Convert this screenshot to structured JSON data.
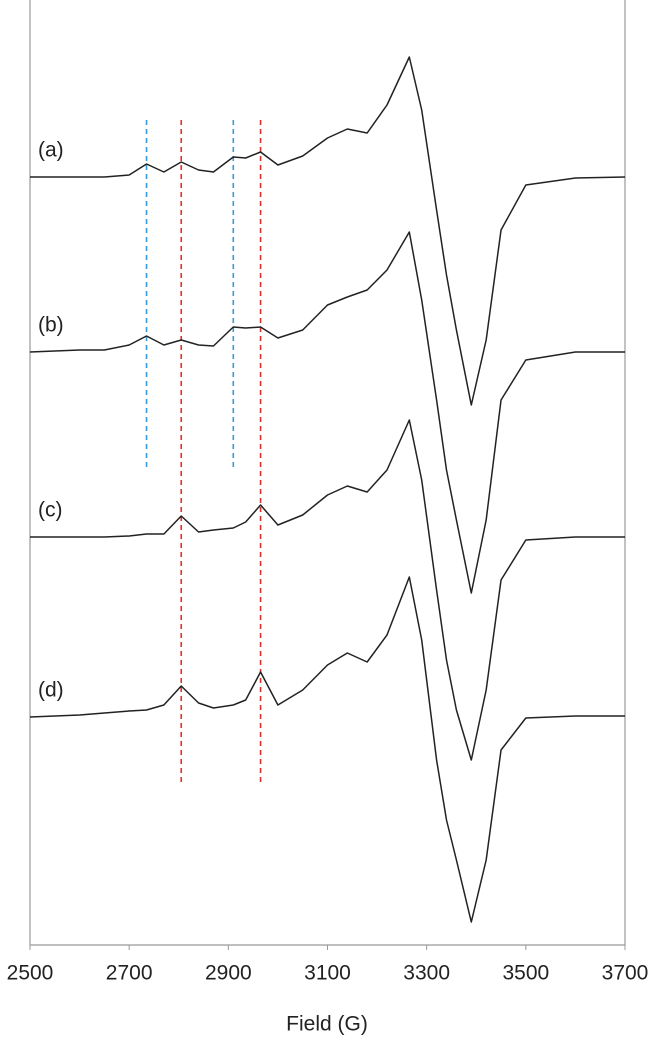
{
  "chart_data": {
    "type": "line",
    "xlabel": "Field (G)",
    "x": [
      2500,
      2600,
      2650,
      2700,
      2735,
      2770,
      2805,
      2840,
      2870,
      2910,
      2935,
      2965,
      3000,
      3050,
      3100,
      3140,
      3180,
      3220,
      3265,
      3290,
      3320,
      3340,
      3360,
      3390,
      3420,
      3450,
      3500,
      3600,
      3700
    ],
    "xlim": [
      2500,
      3700
    ],
    "xticks": [
      2500,
      2700,
      2900,
      3100,
      3300,
      3500,
      3700
    ],
    "ylim": [
      0,
      945
    ],
    "series": [
      {
        "name": "(a)",
        "color": "#222222",
        "values": [
          768,
          768,
          768,
          770,
          781,
          773,
          783,
          775,
          773,
          788,
          787,
          793,
          780,
          789,
          807,
          816,
          812,
          840,
          888,
          835,
          735,
          670,
          615,
          540,
          605,
          715,
          760,
          767,
          768
        ]
      },
      {
        "name": "(b)",
        "color": "#222222",
        "values": [
          593,
          595,
          595,
          600,
          609,
          600,
          605,
          600,
          599,
          618,
          617,
          618,
          607,
          615,
          640,
          648,
          655,
          675,
          713,
          645,
          545,
          475,
          425,
          352,
          425,
          545,
          585,
          593,
          593
        ]
      },
      {
        "name": "(c)",
        "color": "#222222",
        "values": [
          408,
          408,
          408,
          409,
          411,
          411,
          429,
          413,
          415,
          417,
          423,
          440,
          420,
          430,
          450,
          459,
          453,
          475,
          525,
          465,
          355,
          285,
          235,
          185,
          255,
          365,
          405,
          408,
          408
        ]
      },
      {
        "name": "(d)",
        "color": "#222222",
        "values": [
          228,
          230,
          232,
          234,
          235,
          240,
          259,
          242,
          237,
          240,
          245,
          273,
          240,
          255,
          280,
          292,
          283,
          310,
          368,
          305,
          185,
          125,
          85,
          23,
          85,
          195,
          227,
          229,
          229
        ]
      }
    ],
    "reference_lines": [
      {
        "x": 2735,
        "color": "#3a9ad9",
        "y": [
          825,
          475
        ]
      },
      {
        "x": 2910,
        "color": "#3a9ad9",
        "y": [
          825,
          475
        ]
      },
      {
        "x": 2805,
        "color": "#e0302a",
        "y": [
          825,
          160
        ]
      },
      {
        "x": 2965,
        "color": "#e0302a",
        "y": [
          825,
          160
        ]
      }
    ]
  }
}
